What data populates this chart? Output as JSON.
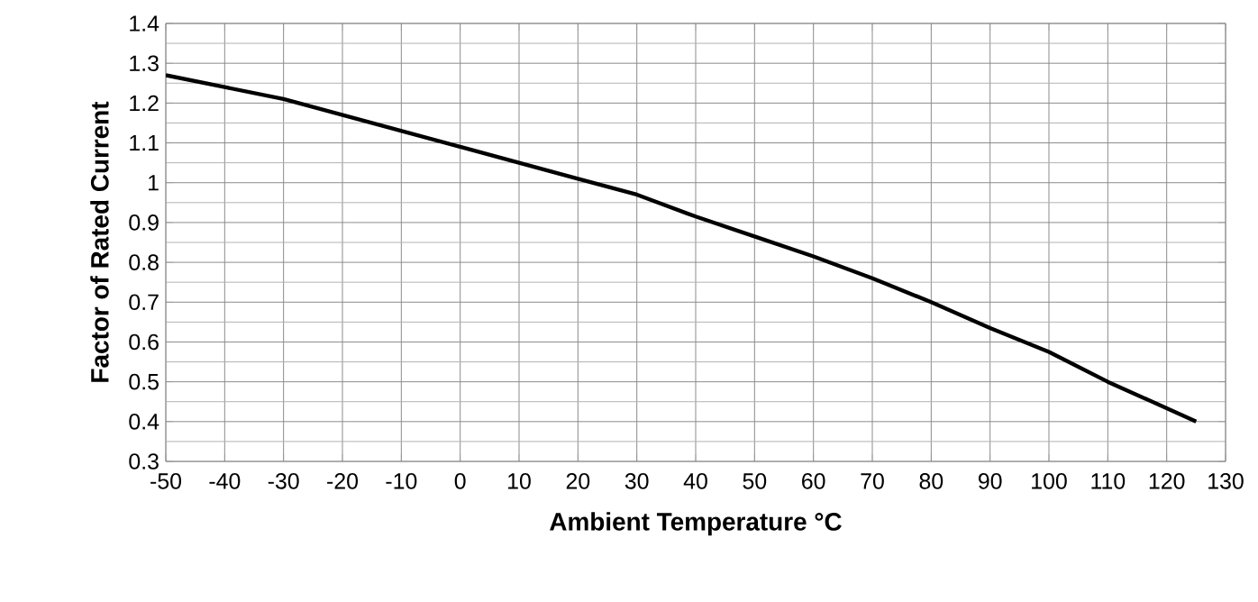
{
  "chart_data": {
    "type": "line",
    "xlabel": "Ambient Temperature °C",
    "ylabel": "Factor of Rated Current",
    "x": [
      -50,
      -40,
      -30,
      -20,
      -10,
      0,
      10,
      20,
      30,
      40,
      50,
      60,
      70,
      80,
      90,
      100,
      110,
      125
    ],
    "series": [
      {
        "color": "#000000",
        "values": [
          1.27,
          1.24,
          1.21,
          1.17,
          1.13,
          1.09,
          1.05,
          1.01,
          0.97,
          0.915,
          0.865,
          0.815,
          0.76,
          0.7,
          0.635,
          0.575,
          0.5,
          0.4
        ]
      }
    ],
    "xlim": [
      -50,
      130
    ],
    "xticks": [
      -50,
      -40,
      -30,
      -20,
      -10,
      0,
      10,
      20,
      30,
      40,
      50,
      60,
      70,
      80,
      90,
      100,
      110,
      120,
      130
    ],
    "ylim": [
      0.3,
      1.4
    ],
    "yticks": [
      0.3,
      0.4,
      0.5,
      0.6,
      0.7,
      0.8,
      0.9,
      1,
      1.1,
      1.2,
      1.3,
      1.4
    ],
    "grid": true,
    "marker": "none",
    "line_style": "solid"
  }
}
